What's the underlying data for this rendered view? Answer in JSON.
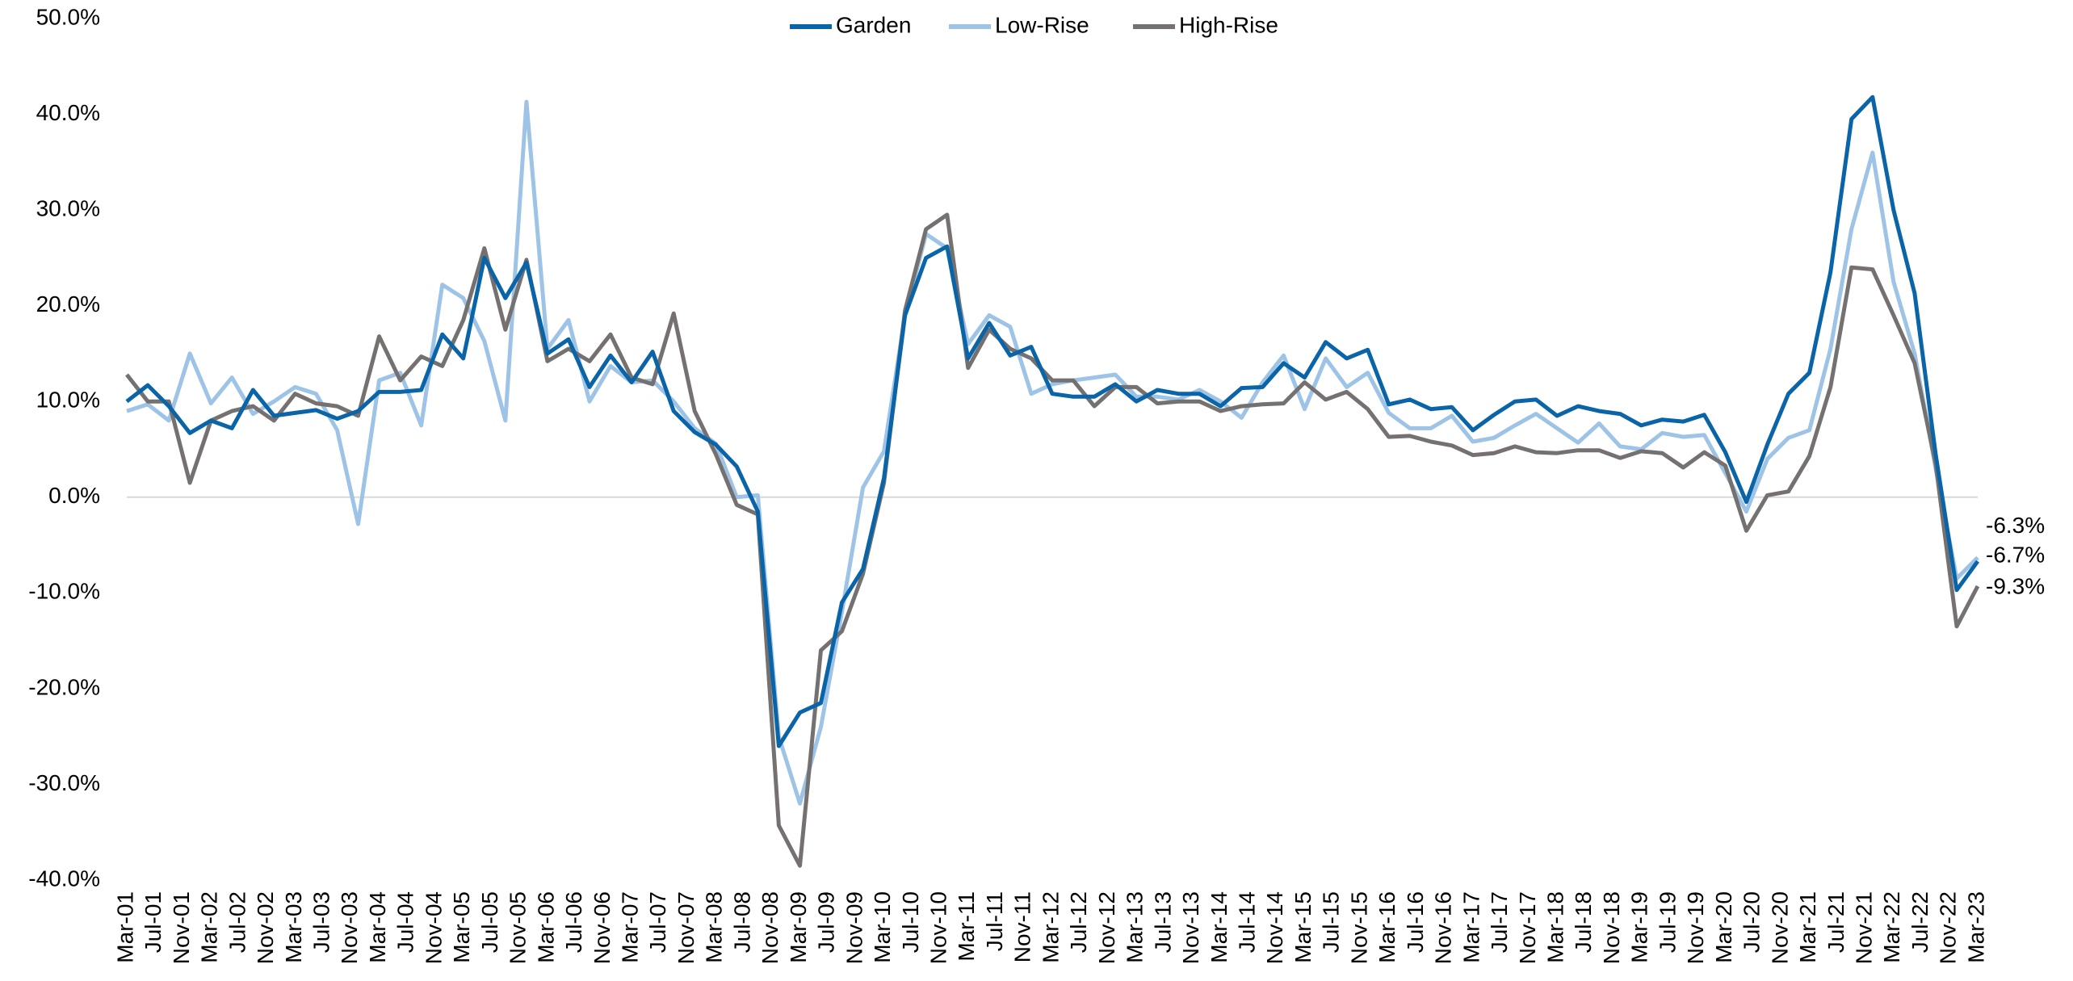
{
  "chart_data": {
    "type": "line",
    "x": [
      0,
      3,
      6,
      9,
      12,
      15,
      18,
      21,
      24,
      27,
      30,
      33,
      36,
      39,
      42,
      45,
      48,
      51,
      54,
      57,
      60,
      63,
      66,
      69,
      72,
      75,
      78,
      81,
      84,
      87,
      90,
      93,
      96,
      99,
      102,
      105,
      108,
      111,
      114,
      117,
      120,
      123,
      126,
      129,
      132,
      135,
      138,
      141,
      144,
      147,
      150,
      153,
      156,
      159,
      162,
      165,
      168,
      171,
      174,
      177,
      180,
      183,
      186,
      189,
      192,
      195,
      198,
      201,
      204,
      207,
      210,
      213,
      216,
      219,
      222,
      225,
      228,
      231,
      234,
      237,
      240,
      243,
      246,
      249,
      252,
      255,
      258,
      261,
      264
    ],
    "xlim": [
      0,
      264
    ],
    "xticks": [
      {
        "value": 0,
        "label": "Mar-01"
      },
      {
        "value": 4,
        "label": "Jul-01"
      },
      {
        "value": 8,
        "label": "Nov-01"
      },
      {
        "value": 12,
        "label": "Mar-02"
      },
      {
        "value": 16,
        "label": "Jul-02"
      },
      {
        "value": 20,
        "label": "Nov-02"
      },
      {
        "value": 24,
        "label": "Mar-03"
      },
      {
        "value": 28,
        "label": "Jul-03"
      },
      {
        "value": 32,
        "label": "Nov-03"
      },
      {
        "value": 36,
        "label": "Mar-04"
      },
      {
        "value": 40,
        "label": "Jul-04"
      },
      {
        "value": 44,
        "label": "Nov-04"
      },
      {
        "value": 48,
        "label": "Mar-05"
      },
      {
        "value": 52,
        "label": "Jul-05"
      },
      {
        "value": 56,
        "label": "Nov-05"
      },
      {
        "value": 60,
        "label": "Mar-06"
      },
      {
        "value": 64,
        "label": "Jul-06"
      },
      {
        "value": 68,
        "label": "Nov-06"
      },
      {
        "value": 72,
        "label": "Mar-07"
      },
      {
        "value": 76,
        "label": "Jul-07"
      },
      {
        "value": 80,
        "label": "Nov-07"
      },
      {
        "value": 84,
        "label": "Mar-08"
      },
      {
        "value": 88,
        "label": "Jul-08"
      },
      {
        "value": 92,
        "label": "Nov-08"
      },
      {
        "value": 96,
        "label": "Mar-09"
      },
      {
        "value": 100,
        "label": "Jul-09"
      },
      {
        "value": 104,
        "label": "Nov-09"
      },
      {
        "value": 108,
        "label": "Mar-10"
      },
      {
        "value": 112,
        "label": "Jul-10"
      },
      {
        "value": 116,
        "label": "Nov-10"
      },
      {
        "value": 120,
        "label": "Mar-11"
      },
      {
        "value": 124,
        "label": "Jul-11"
      },
      {
        "value": 128,
        "label": "Nov-11"
      },
      {
        "value": 132,
        "label": "Mar-12"
      },
      {
        "value": 136,
        "label": "Jul-12"
      },
      {
        "value": 140,
        "label": "Nov-12"
      },
      {
        "value": 144,
        "label": "Mar-13"
      },
      {
        "value": 148,
        "label": "Jul-13"
      },
      {
        "value": 152,
        "label": "Nov-13"
      },
      {
        "value": 156,
        "label": "Mar-14"
      },
      {
        "value": 160,
        "label": "Jul-14"
      },
      {
        "value": 164,
        "label": "Nov-14"
      },
      {
        "value": 168,
        "label": "Mar-15"
      },
      {
        "value": 172,
        "label": "Jul-15"
      },
      {
        "value": 176,
        "label": "Nov-15"
      },
      {
        "value": 180,
        "label": "Mar-16"
      },
      {
        "value": 184,
        "label": "Jul-16"
      },
      {
        "value": 188,
        "label": "Nov-16"
      },
      {
        "value": 192,
        "label": "Mar-17"
      },
      {
        "value": 196,
        "label": "Jul-17"
      },
      {
        "value": 200,
        "label": "Nov-17"
      },
      {
        "value": 204,
        "label": "Mar-18"
      },
      {
        "value": 208,
        "label": "Jul-18"
      },
      {
        "value": 212,
        "label": "Nov-18"
      },
      {
        "value": 216,
        "label": "Mar-19"
      },
      {
        "value": 220,
        "label": "Jul-19"
      },
      {
        "value": 224,
        "label": "Nov-19"
      },
      {
        "value": 228,
        "label": "Mar-20"
      },
      {
        "value": 232,
        "label": "Jul-20"
      },
      {
        "value": 236,
        "label": "Nov-20"
      },
      {
        "value": 240,
        "label": "Mar-21"
      },
      {
        "value": 244,
        "label": "Jul-21"
      },
      {
        "value": 248,
        "label": "Nov-21"
      },
      {
        "value": 252,
        "label": "Mar-22"
      },
      {
        "value": 256,
        "label": "Jul-22"
      },
      {
        "value": 260,
        "label": "Nov-22"
      },
      {
        "value": 264,
        "label": "Mar-23"
      }
    ],
    "ylim": [
      -40,
      50
    ],
    "yticks": [
      {
        "value": 50,
        "label": "50.0%"
      },
      {
        "value": 40,
        "label": "40.0%"
      },
      {
        "value": 30,
        "label": "30.0%"
      },
      {
        "value": 20,
        "label": "20.0%"
      },
      {
        "value": 10,
        "label": "10.0%"
      },
      {
        "value": 0,
        "label": "0.0%"
      },
      {
        "value": -10,
        "label": "-10.0%"
      },
      {
        "value": -20,
        "label": "-20.0%"
      },
      {
        "value": -30,
        "label": "-30.0%"
      },
      {
        "value": -40,
        "label": "-40.0%"
      }
    ],
    "zero_line": true,
    "legend": "top",
    "series": [
      {
        "name": "Garden",
        "color": "#0a64a8",
        "values": [
          10,
          11.7,
          9.5,
          6.7,
          8,
          7.2,
          11.2,
          8.5,
          8.8,
          9.1,
          8.2,
          9,
          11,
          11,
          11.2,
          17,
          14.5,
          25,
          20.8,
          24.5,
          15,
          16.5,
          11.5,
          14.8,
          12,
          15.2,
          9,
          6.8,
          5.5,
          3.2,
          -1.5,
          -26,
          -22.5,
          -21.5,
          -11,
          -7.5,
          2,
          19,
          25,
          26.2,
          14.5,
          18.2,
          14.8,
          15.7,
          10.8,
          10.5,
          10.5,
          11.8,
          10,
          11.2,
          10.8,
          10.8,
          9.5,
          11.4,
          11.5,
          14,
          12.5,
          16.2,
          14.5,
          15.4,
          9.7,
          10.2,
          9.2,
          9.4,
          7,
          8.6,
          10,
          10.2,
          8.5,
          9.5,
          9,
          8.7,
          7.5,
          8.1,
          7.9,
          8.6,
          4.7,
          -0.5,
          5.5,
          10.8,
          13,
          23.5,
          39.5,
          41.8,
          30,
          21.3,
          4.5,
          -9.7,
          -6.7
        ],
        "value_labels": [
          null,
          null,
          null,
          null,
          null,
          null,
          null,
          null,
          null,
          null,
          null,
          null,
          null,
          null,
          null,
          null,
          null,
          null,
          null,
          null,
          null,
          null,
          null,
          null,
          null,
          null,
          null,
          null,
          null,
          null,
          null,
          null,
          null,
          null,
          null,
          null,
          null,
          null,
          null,
          null,
          null,
          null,
          null,
          null,
          null,
          null,
          null,
          null,
          null,
          null,
          null,
          null,
          null,
          null,
          null,
          null,
          null,
          null,
          null,
          null,
          null,
          null,
          null,
          null,
          null,
          null,
          null,
          null,
          null,
          null,
          null,
          null,
          null,
          null,
          null,
          null,
          null,
          null,
          null,
          null,
          null,
          null,
          null,
          null,
          null,
          null,
          null,
          null,
          "-6.7%"
        ]
      },
      {
        "name": "Low-Rise",
        "color": "#9dc3e6",
        "values": [
          9,
          9.7,
          8,
          15,
          9.8,
          12.5,
          8.7,
          10,
          11.5,
          10.8,
          7,
          -2.8,
          12.2,
          13,
          7.5,
          22.2,
          20.8,
          16.3,
          8,
          41.3,
          15.5,
          18.5,
          10,
          13.7,
          12,
          12.2,
          10,
          7.2,
          5.6,
          0,
          0.2,
          -25,
          -32,
          -24,
          -12,
          1,
          4.8,
          19,
          27.5,
          26,
          16,
          19,
          17.8,
          10.8,
          11.8,
          12.2,
          12.5,
          12.8,
          10.5,
          10.5,
          10.2,
          11.2,
          10,
          8.3,
          12,
          14.8,
          9.2,
          14.5,
          11.5,
          13,
          8.8,
          7.2,
          7.2,
          8.5,
          5.8,
          6.2,
          7.5,
          8.7,
          7.2,
          5.7,
          7.7,
          5.3,
          5,
          6.7,
          6.3,
          6.5,
          2.5,
          -1.5,
          4,
          6.2,
          7,
          15.5,
          28,
          36,
          22.5,
          15,
          3,
          -8.5,
          -6.3
        ],
        "value_labels": [
          null,
          null,
          null,
          null,
          null,
          null,
          null,
          null,
          null,
          null,
          null,
          null,
          null,
          null,
          null,
          null,
          null,
          null,
          null,
          null,
          null,
          null,
          null,
          null,
          null,
          null,
          null,
          null,
          null,
          null,
          null,
          null,
          null,
          null,
          null,
          null,
          null,
          null,
          null,
          null,
          null,
          null,
          null,
          null,
          null,
          null,
          null,
          null,
          null,
          null,
          null,
          null,
          null,
          null,
          null,
          null,
          null,
          null,
          null,
          null,
          null,
          null,
          null,
          null,
          null,
          null,
          null,
          null,
          null,
          null,
          null,
          null,
          null,
          null,
          null,
          null,
          null,
          null,
          null,
          null,
          null,
          null,
          null,
          null,
          null,
          null,
          null,
          null,
          "-6.3%"
        ]
      },
      {
        "name": "High-Rise",
        "color": "#767171",
        "values": [
          12.8,
          10,
          10,
          1.5,
          8,
          9,
          9.5,
          8,
          10.8,
          9.8,
          9.5,
          8.5,
          16.8,
          12.2,
          14.7,
          13.7,
          18.5,
          26,
          17.5,
          24.8,
          14.2,
          15.5,
          14.2,
          17,
          12.5,
          11.8,
          19.2,
          9,
          4.5,
          -0.8,
          -1.8,
          -34.3,
          -38.5,
          -16,
          -14,
          -8,
          1.5,
          19.5,
          28,
          29.5,
          13.5,
          17.5,
          15.5,
          14.5,
          12.2,
          12.2,
          9.5,
          11.5,
          11.5,
          9.8,
          10,
          10,
          9,
          9.5,
          9.7,
          9.8,
          12,
          10.2,
          11,
          9.2,
          6.3,
          6.4,
          5.8,
          5.4,
          4.4,
          4.6,
          5.3,
          4.7,
          4.6,
          4.9,
          4.9,
          4.1,
          4.8,
          4.6,
          3.1,
          4.7,
          3.3,
          -3.5,
          0.2,
          0.6,
          4.3,
          11.5,
          24,
          23.8,
          19,
          14,
          3.5,
          -13.5,
          -9.3
        ],
        "value_labels": [
          null,
          null,
          null,
          null,
          null,
          null,
          null,
          null,
          null,
          null,
          null,
          null,
          null,
          null,
          null,
          null,
          null,
          null,
          null,
          null,
          null,
          null,
          null,
          null,
          null,
          null,
          null,
          null,
          null,
          null,
          null,
          null,
          null,
          null,
          null,
          null,
          null,
          null,
          null,
          null,
          null,
          null,
          null,
          null,
          null,
          null,
          null,
          null,
          null,
          null,
          null,
          null,
          null,
          null,
          null,
          null,
          null,
          null,
          null,
          null,
          null,
          null,
          null,
          null,
          null,
          null,
          null,
          null,
          null,
          null,
          null,
          null,
          null,
          null,
          null,
          null,
          null,
          null,
          null,
          null,
          null,
          null,
          null,
          null,
          null,
          null,
          null,
          null,
          "-9.3%"
        ]
      }
    ]
  }
}
